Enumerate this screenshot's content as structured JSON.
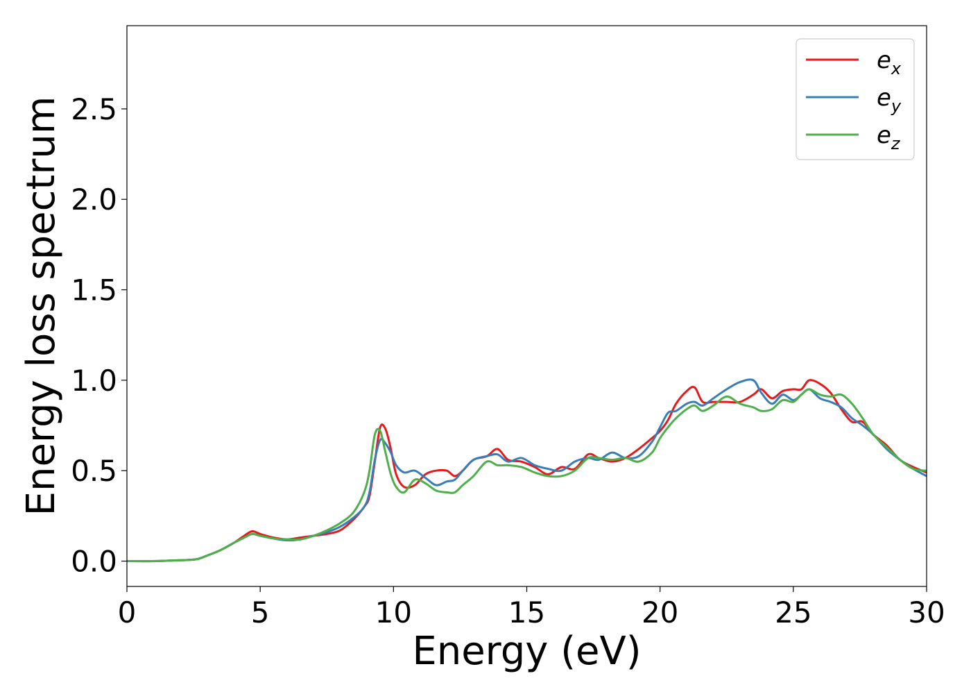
{
  "chart_data": {
    "type": "line",
    "title": "",
    "xlabel": "Energy (eV)",
    "ylabel": "Energy loss spectrum",
    "xlim": [
      0,
      30
    ],
    "ylim": [
      -0.14,
      2.96
    ],
    "xticks": [
      0,
      5,
      10,
      15,
      20,
      25,
      30
    ],
    "yticks": [
      0.0,
      0.5,
      1.0,
      1.5,
      2.0,
      2.5
    ],
    "xtick_labels": [
      "0",
      "5",
      "10",
      "15",
      "20",
      "25",
      "30"
    ],
    "ytick_labels": [
      "0.0",
      "0.5",
      "1.0",
      "1.5",
      "2.0",
      "2.5"
    ],
    "grid": false,
    "legend_position": "top-right",
    "series": [
      {
        "name": "e_x",
        "legend_base": "e",
        "legend_sub": "x",
        "color": "#e41a1c",
        "x": [
          0,
          1,
          2,
          2.6,
          3.0,
          3.5,
          4.0,
          4.4,
          4.7,
          5.0,
          5.5,
          6.0,
          6.5,
          7.0,
          7.5,
          8.0,
          8.5,
          8.9,
          9.1,
          9.3,
          9.5,
          9.7,
          9.9,
          10.1,
          10.4,
          10.8,
          11.2,
          11.6,
          12.0,
          12.3,
          12.6,
          13.0,
          13.5,
          13.9,
          14.3,
          14.8,
          15.3,
          15.8,
          16.3,
          16.8,
          17.3,
          17.7,
          18.2,
          18.7,
          19.2,
          19.7,
          20.0,
          20.3,
          20.6,
          21.0,
          21.3,
          21.6,
          22.0,
          22.5,
          23.0,
          23.5,
          23.8,
          24.2,
          24.6,
          25.0,
          25.3,
          25.6,
          26.0,
          26.4,
          26.8,
          27.2,
          27.6,
          28.0,
          28.5,
          29.0,
          29.5,
          30.0
        ],
        "y": [
          0.0,
          0.0,
          0.005,
          0.01,
          0.03,
          0.06,
          0.1,
          0.14,
          0.165,
          0.15,
          0.13,
          0.12,
          0.13,
          0.14,
          0.15,
          0.17,
          0.23,
          0.3,
          0.36,
          0.55,
          0.74,
          0.73,
          0.62,
          0.48,
          0.41,
          0.42,
          0.48,
          0.5,
          0.5,
          0.47,
          0.5,
          0.56,
          0.58,
          0.62,
          0.56,
          0.55,
          0.52,
          0.48,
          0.52,
          0.51,
          0.59,
          0.57,
          0.55,
          0.57,
          0.62,
          0.68,
          0.72,
          0.78,
          0.87,
          0.94,
          0.96,
          0.88,
          0.88,
          0.88,
          0.88,
          0.92,
          0.95,
          0.9,
          0.94,
          0.95,
          0.95,
          1.0,
          0.98,
          0.93,
          0.84,
          0.77,
          0.77,
          0.7,
          0.64,
          0.56,
          0.52,
          0.49
        ]
      },
      {
        "name": "e_y",
        "legend_base": "e",
        "legend_sub": "y",
        "color": "#377eb8",
        "x": [
          0,
          1,
          2,
          2.6,
          3.0,
          3.5,
          4.0,
          4.4,
          4.7,
          5.0,
          5.5,
          6.0,
          6.5,
          7.0,
          7.5,
          8.0,
          8.5,
          8.9,
          9.1,
          9.3,
          9.5,
          9.7,
          9.9,
          10.1,
          10.4,
          10.8,
          11.2,
          11.6,
          12.0,
          12.3,
          12.6,
          13.0,
          13.5,
          13.9,
          14.3,
          14.8,
          15.3,
          15.8,
          16.3,
          16.8,
          17.3,
          17.7,
          18.2,
          18.7,
          19.2,
          19.7,
          20.0,
          20.3,
          20.6,
          21.0,
          21.3,
          21.6,
          22.0,
          22.5,
          23.0,
          23.5,
          23.8,
          24.2,
          24.6,
          25.0,
          25.3,
          25.6,
          26.0,
          26.4,
          26.8,
          27.2,
          27.6,
          28.0,
          28.5,
          29.0,
          29.5,
          30.0
        ],
        "y": [
          0.0,
          0.0,
          0.005,
          0.01,
          0.03,
          0.06,
          0.1,
          0.13,
          0.15,
          0.14,
          0.125,
          0.115,
          0.12,
          0.14,
          0.16,
          0.19,
          0.24,
          0.3,
          0.38,
          0.56,
          0.67,
          0.65,
          0.6,
          0.53,
          0.49,
          0.5,
          0.46,
          0.42,
          0.44,
          0.45,
          0.5,
          0.56,
          0.58,
          0.59,
          0.55,
          0.57,
          0.53,
          0.51,
          0.5,
          0.55,
          0.57,
          0.56,
          0.6,
          0.57,
          0.58,
          0.66,
          0.74,
          0.82,
          0.83,
          0.87,
          0.88,
          0.86,
          0.9,
          0.95,
          0.99,
          1.0,
          0.93,
          0.87,
          0.92,
          0.89,
          0.92,
          0.95,
          0.9,
          0.88,
          0.85,
          0.79,
          0.75,
          0.7,
          0.62,
          0.56,
          0.51,
          0.47
        ]
      },
      {
        "name": "e_z",
        "legend_base": "e",
        "legend_sub": "z",
        "color": "#4daf4a",
        "x": [
          0,
          1,
          2,
          2.6,
          3.0,
          3.5,
          4.0,
          4.4,
          4.7,
          5.0,
          5.5,
          6.0,
          6.5,
          7.0,
          7.5,
          8.0,
          8.5,
          8.9,
          9.1,
          9.3,
          9.5,
          9.7,
          9.9,
          10.1,
          10.4,
          10.8,
          11.2,
          11.6,
          12.0,
          12.3,
          12.6,
          13.0,
          13.5,
          13.9,
          14.3,
          14.8,
          15.3,
          15.8,
          16.3,
          16.8,
          17.3,
          17.7,
          18.2,
          18.7,
          19.2,
          19.7,
          20.0,
          20.3,
          20.6,
          21.0,
          21.3,
          21.6,
          22.0,
          22.5,
          23.0,
          23.5,
          23.8,
          24.2,
          24.6,
          25.0,
          25.3,
          25.6,
          26.0,
          26.4,
          26.8,
          27.2,
          27.6,
          28.0,
          28.5,
          29.0,
          29.5,
          30.0
        ],
        "y": [
          0.0,
          0.0,
          0.005,
          0.01,
          0.03,
          0.06,
          0.1,
          0.13,
          0.15,
          0.14,
          0.125,
          0.12,
          0.12,
          0.14,
          0.17,
          0.21,
          0.27,
          0.38,
          0.5,
          0.7,
          0.72,
          0.6,
          0.48,
          0.41,
          0.38,
          0.45,
          0.43,
          0.39,
          0.38,
          0.38,
          0.42,
          0.47,
          0.55,
          0.53,
          0.53,
          0.52,
          0.49,
          0.47,
          0.47,
          0.5,
          0.57,
          0.57,
          0.56,
          0.57,
          0.55,
          0.6,
          0.68,
          0.74,
          0.79,
          0.84,
          0.86,
          0.83,
          0.86,
          0.91,
          0.87,
          0.85,
          0.83,
          0.84,
          0.89,
          0.88,
          0.92,
          0.95,
          0.92,
          0.91,
          0.92,
          0.87,
          0.79,
          0.7,
          0.63,
          0.56,
          0.51,
          0.5
        ]
      }
    ]
  }
}
